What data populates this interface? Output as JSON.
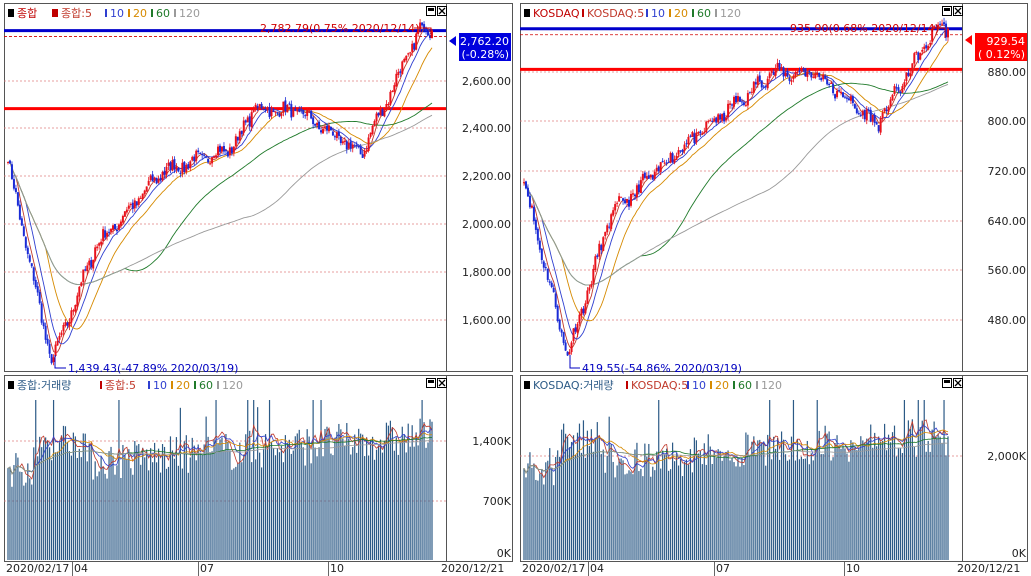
{
  "colors": {
    "up": "#e8121b",
    "down": "#1a2bd6",
    "ma5": "#c0392b",
    "ma10": "#2f3fd0",
    "ma20": "#d68a00",
    "ma60": "#1f7a2a",
    "ma120": "#9a9a9a",
    "vol_bar": "#2c5a86",
    "hline_blue": "#0000cc",
    "hline_red": "#ff0000",
    "current_box_kospi": "#0000dd",
    "current_box_kosdaq": "#ff0000"
  },
  "window_icons": [
    "maximize-icon",
    "close-icon"
  ],
  "dates": {
    "start": "2020/02/17",
    "end": "2020/12/21",
    "month_labels": [
      "04",
      "07",
      "10"
    ]
  },
  "kospi": {
    "legend": {
      "name": "종합",
      "ma_prefix": "종합:5",
      "ma10": "10",
      "ma20": "20",
      "ma60": "60",
      "ma120": "120"
    },
    "volume_legend": {
      "name": "종합:거래량",
      "ma_prefix": "종합:5",
      "ma10": "10",
      "ma20": "20",
      "ma60": "60",
      "ma120": "120"
    },
    "high_annotation": "2,782.79(0.75% 2020/12/14)",
    "low_annotation": "1,439.43(-47.89% 2020/03/19)",
    "current_price": "2,762.20",
    "current_change": "(-0.28%)",
    "y_ticks": [
      "2,600.00",
      "2,400.00",
      "2,200.00",
      "2,000.00",
      "1,800.00",
      "1,600.00"
    ],
    "volume_ticks": [
      "1,400K",
      "700K",
      "0K"
    ]
  },
  "kosdaq": {
    "legend": {
      "name": "KOSDAQ",
      "ma_prefix": "KOSDAQ:5",
      "ma10": "10",
      "ma20": "20",
      "ma60": "60",
      "ma120": "120"
    },
    "volume_legend": {
      "name": "KOSDAQ:거래량",
      "ma_prefix": "KOSDAQ:5",
      "ma10": "10",
      "ma20": "20",
      "ma60": "60",
      "ma120": "120"
    },
    "high_annotation": "935.90(0.68% 2020/12/14)",
    "low_annotation": "419.55(-54.86% 2020/03/19)",
    "current_price": "929.54",
    "current_change": "( 0.12%)",
    "y_ticks": [
      "880.00",
      "800.00",
      "720.00",
      "640.00",
      "560.00",
      "480.00"
    ],
    "volume_ticks": [
      "2,000K",
      "0K"
    ]
  },
  "chart_data": [
    {
      "type": "candlestick",
      "series_name": "종합",
      "x_start": "2020/02/17",
      "x_end": "2020/12/21",
      "ylim": [
        1420,
        2860
      ],
      "key_points": [
        {
          "date": "2020/02/17",
          "close": 2240
        },
        {
          "date": "2020/03/19",
          "close": 1439.43
        },
        {
          "date": "2020/04/20",
          "close": 1900
        },
        {
          "date": "2020/06/08",
          "close": 2200
        },
        {
          "date": "2020/07/30",
          "close": 2300
        },
        {
          "date": "2020/08/14",
          "close": 2450
        },
        {
          "date": "2020/09/15",
          "close": 2440
        },
        {
          "date": "2020/10/30",
          "close": 2270
        },
        {
          "date": "2020/12/14",
          "close": 2782.79
        },
        {
          "date": "2020/12/21",
          "close": 2762.2
        }
      ],
      "hlines": [
        {
          "value": 2762.2,
          "color": "blue"
        },
        {
          "value": 2452,
          "color": "red"
        }
      ],
      "moving_averages": [
        "5",
        "10",
        "20",
        "60",
        "120"
      ]
    },
    {
      "type": "candlestick",
      "series_name": "KOSDAQ",
      "x_start": "2020/02/17",
      "x_end": "2020/12/21",
      "ylim": [
        400,
        965
      ],
      "key_points": [
        {
          "date": "2020/02/17",
          "close": 690
        },
        {
          "date": "2020/03/19",
          "close": 419.55
        },
        {
          "date": "2020/04/20",
          "close": 640
        },
        {
          "date": "2020/06/08",
          "close": 740
        },
        {
          "date": "2020/07/30",
          "close": 830
        },
        {
          "date": "2020/08/14",
          "close": 860
        },
        {
          "date": "2020/09/15",
          "close": 860
        },
        {
          "date": "2020/10/30",
          "close": 780
        },
        {
          "date": "2020/12/14",
          "close": 935.9
        },
        {
          "date": "2020/12/21",
          "close": 929.54
        }
      ],
      "hlines": [
        {
          "value": 929.54,
          "color": "blue"
        },
        {
          "value": 866,
          "color": "red"
        }
      ],
      "moving_averages": [
        "5",
        "10",
        "20",
        "60",
        "120"
      ]
    }
  ]
}
